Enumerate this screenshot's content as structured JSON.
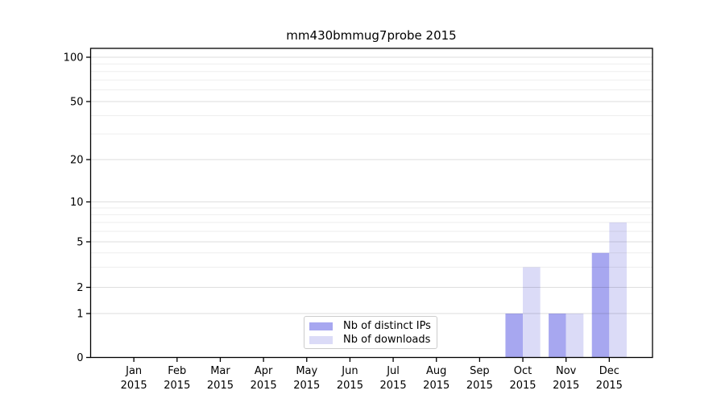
{
  "chart_data": {
    "type": "bar",
    "title": "mm430bmmug7probe 2015",
    "categories": [
      "Jan",
      "Feb",
      "Mar",
      "Apr",
      "May",
      "Jun",
      "Jul",
      "Aug",
      "Sep",
      "Oct",
      "Nov",
      "Dec"
    ],
    "x_tick_second_line": "2015",
    "series": [
      {
        "name": "Nb of distinct IPs",
        "color": "#a7a7f0",
        "values": [
          0,
          0,
          0,
          0,
          0,
          0,
          0,
          0,
          0,
          1,
          1,
          4
        ]
      },
      {
        "name": "Nb of downloads",
        "color": "#dbdbf7",
        "values": [
          0,
          0,
          0,
          0,
          0,
          0,
          0,
          0,
          0,
          3,
          1,
          7
        ]
      }
    ],
    "y_major_ticks": [
      0,
      1,
      2,
      5,
      10,
      20,
      50,
      100
    ],
    "y_minor_gridlines": [
      3,
      4,
      6,
      7,
      8,
      9,
      30,
      40,
      60,
      70,
      80,
      90
    ],
    "ylim": [
      0,
      115
    ],
    "yscale": "symlog",
    "grid": true,
    "legend": {
      "position": "lower center"
    }
  },
  "colors": {
    "background": "#ffffff",
    "spine": "#000000",
    "grid_major": "rgba(0,0,0,0.13)",
    "grid_minor": "rgba(0,0,0,0.065)",
    "text": "#000000"
  }
}
